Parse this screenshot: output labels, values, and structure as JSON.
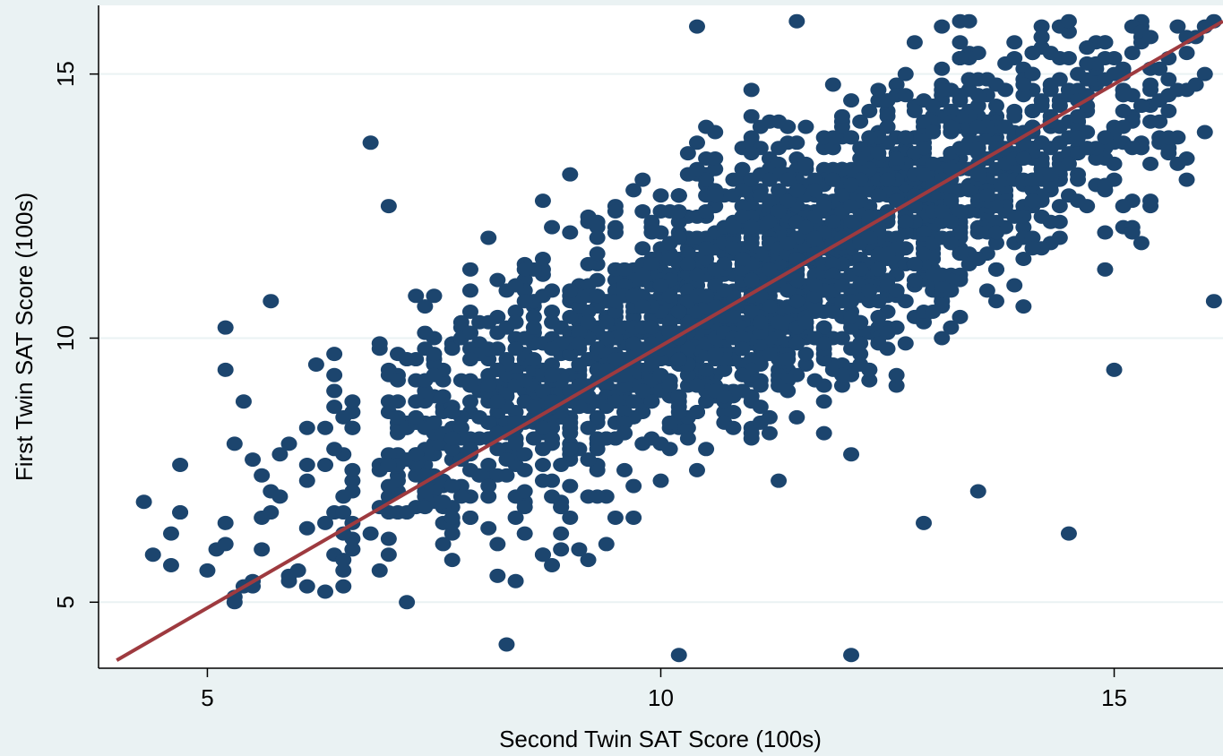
{
  "chart_data": {
    "type": "scatter",
    "title": "",
    "xlabel": "Second Twin SAT Score (100s)",
    "ylabel": "First Twin SAT Score (100s)",
    "xlim": [
      3.8,
      16.2
    ],
    "ylim": [
      3.75,
      16.3
    ],
    "xticks": [
      5,
      10,
      15
    ],
    "yticks": [
      5,
      10,
      15
    ],
    "grid": "horizontal",
    "legend": "none",
    "colors": {
      "background": "#eaf2f3",
      "plot_area": "#ffffff",
      "points": "#1c456e",
      "fit_line": "#9e3a3f",
      "grid": "#eaf2f3"
    },
    "fit_line": {
      "x": [
        4.0,
        16.2
      ],
      "y": [
        3.9,
        16.0
      ]
    },
    "series": [
      {
        "points_note_free": true,
        "outliers_x": [
          4.3,
          4.6,
          5.2,
          5.3,
          5.5,
          5.7,
          5.9,
          6.0,
          6.5,
          6.8,
          8.3,
          10.2,
          12.1,
          12.9,
          13.5,
          14.5,
          15.0,
          16.1,
          16.1,
          11.5,
          10.4,
          8.4,
          7.2,
          7.0,
          6.9,
          5.4
        ],
        "outliers_y": [
          6.9,
          5.7,
          9.4,
          8.0,
          5.4,
          10.7,
          5.4,
          5.6,
          5.3,
          13.7,
          4.2,
          4.0,
          4.0,
          6.5,
          7.1,
          6.3,
          9.4,
          10.7,
          16.0,
          16.0,
          15.9,
          5.4,
          5.0,
          12.5,
          9.9,
          8.8
        ]
      }
    ]
  }
}
